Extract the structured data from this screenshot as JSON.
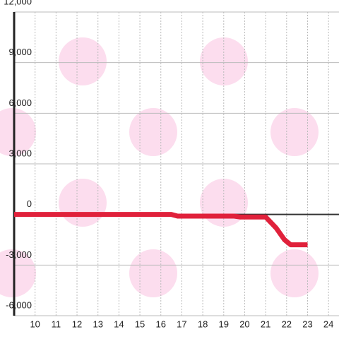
{
  "chart_data": {
    "type": "line",
    "x": [
      9,
      16.5,
      16.8,
      19.5,
      19.8,
      21,
      21.5,
      21.9,
      22.2,
      23
    ],
    "series": [
      {
        "color": "#e0213b",
        "values": [
          0,
          0,
          -100,
          -100,
          -150,
          -150,
          -800,
          -1500,
          -1800,
          -1800
        ]
      }
    ],
    "xlim": [
      9,
      24.5
    ],
    "xticks": [
      10,
      11,
      12,
      13,
      14,
      15,
      16,
      17,
      18,
      19,
      20,
      21,
      22,
      23,
      24
    ],
    "ylim": [
      -6000,
      12000
    ],
    "yticks": [
      {
        "value": -6000,
        "label": "-6,000"
      },
      {
        "value": -3000,
        "label": "-3,000"
      },
      0,
      {
        "value": 3000,
        "label": "3,000"
      },
      {
        "value": 6000,
        "label": "6,000"
      },
      {
        "value": 9000,
        "label": "9,000"
      },
      {
        "value": 12000,
        "label": "12,000"
      }
    ],
    "grid": true
  }
}
